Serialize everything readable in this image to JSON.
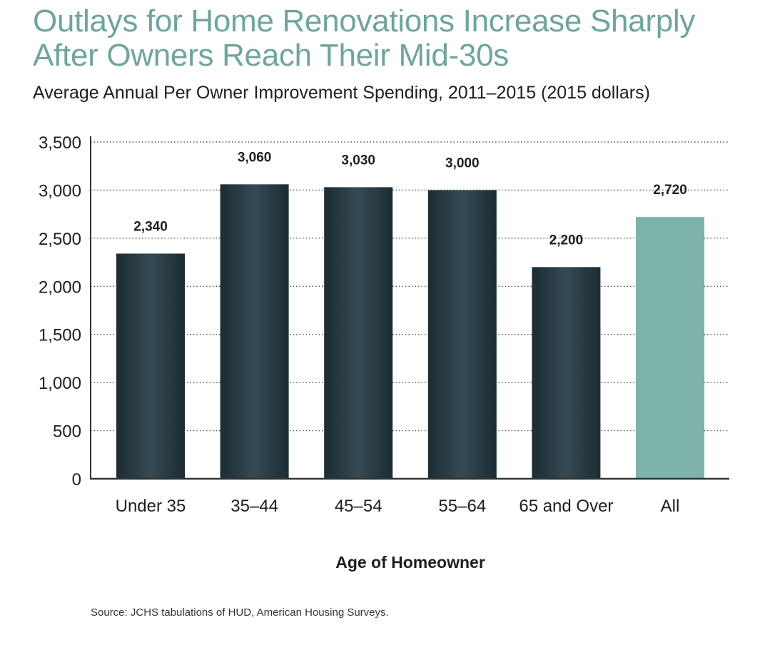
{
  "chart_data": {
    "type": "bar",
    "title": "Outlays for Home Renovations Increase Sharply After Owners Reach Their Mid-30s",
    "subtitle": "Average Annual Per Owner Improvement Spending, 2011–2015 (2015 dollars)",
    "xlabel": "Age of Homeowner",
    "ylabel": "",
    "categories": [
      "Under 35",
      "35–44",
      "45–54",
      "55–64",
      "65 and Over",
      "All"
    ],
    "values": [
      2340,
      3060,
      3030,
      3000,
      2200,
      2720
    ],
    "value_labels": [
      "2,340",
      "3,060",
      "3,030",
      "3,000",
      "2,200",
      "2,720"
    ],
    "ylim": [
      0,
      3500
    ],
    "yticks": [
      0,
      500,
      1000,
      1500,
      2000,
      2500,
      3000,
      3500
    ],
    "ytick_labels": [
      "0",
      "500",
      "1,000",
      "1,500",
      "2,000",
      "2,500",
      "3,000",
      "3,500"
    ],
    "grid": true,
    "bar_colors": [
      "#22363f",
      "#22363f",
      "#22363f",
      "#22363f",
      "#22363f",
      "#7db3a9"
    ]
  },
  "source": "Source: JCHS tabulations of HUD, American Housing Surveys."
}
